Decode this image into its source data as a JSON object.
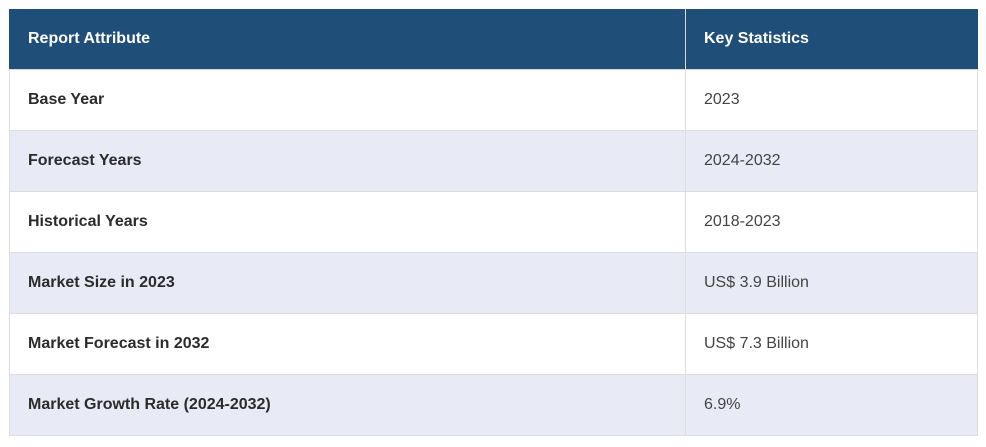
{
  "table": {
    "headers": {
      "attribute": "Report Attribute",
      "statistics": "Key Statistics"
    },
    "rows": [
      {
        "attribute": "Base Year",
        "value": "2023"
      },
      {
        "attribute": "Forecast Years",
        "value": "2024-2032"
      },
      {
        "attribute": "Historical Years",
        "value": "2018-2023"
      },
      {
        "attribute": "Market Size in 2023",
        "value": "US$ 3.9 Billion"
      },
      {
        "attribute": "Market Forecast in 2032",
        "value": "US$ 7.3 Billion"
      },
      {
        "attribute": "Market Growth Rate (2024-2032)",
        "value": "6.9%"
      }
    ],
    "colors": {
      "header_bg": "#1f4e79",
      "header_text": "#ffffff",
      "stripe_bg": "#e8eaf6",
      "row_bg": "#ffffff"
    }
  }
}
